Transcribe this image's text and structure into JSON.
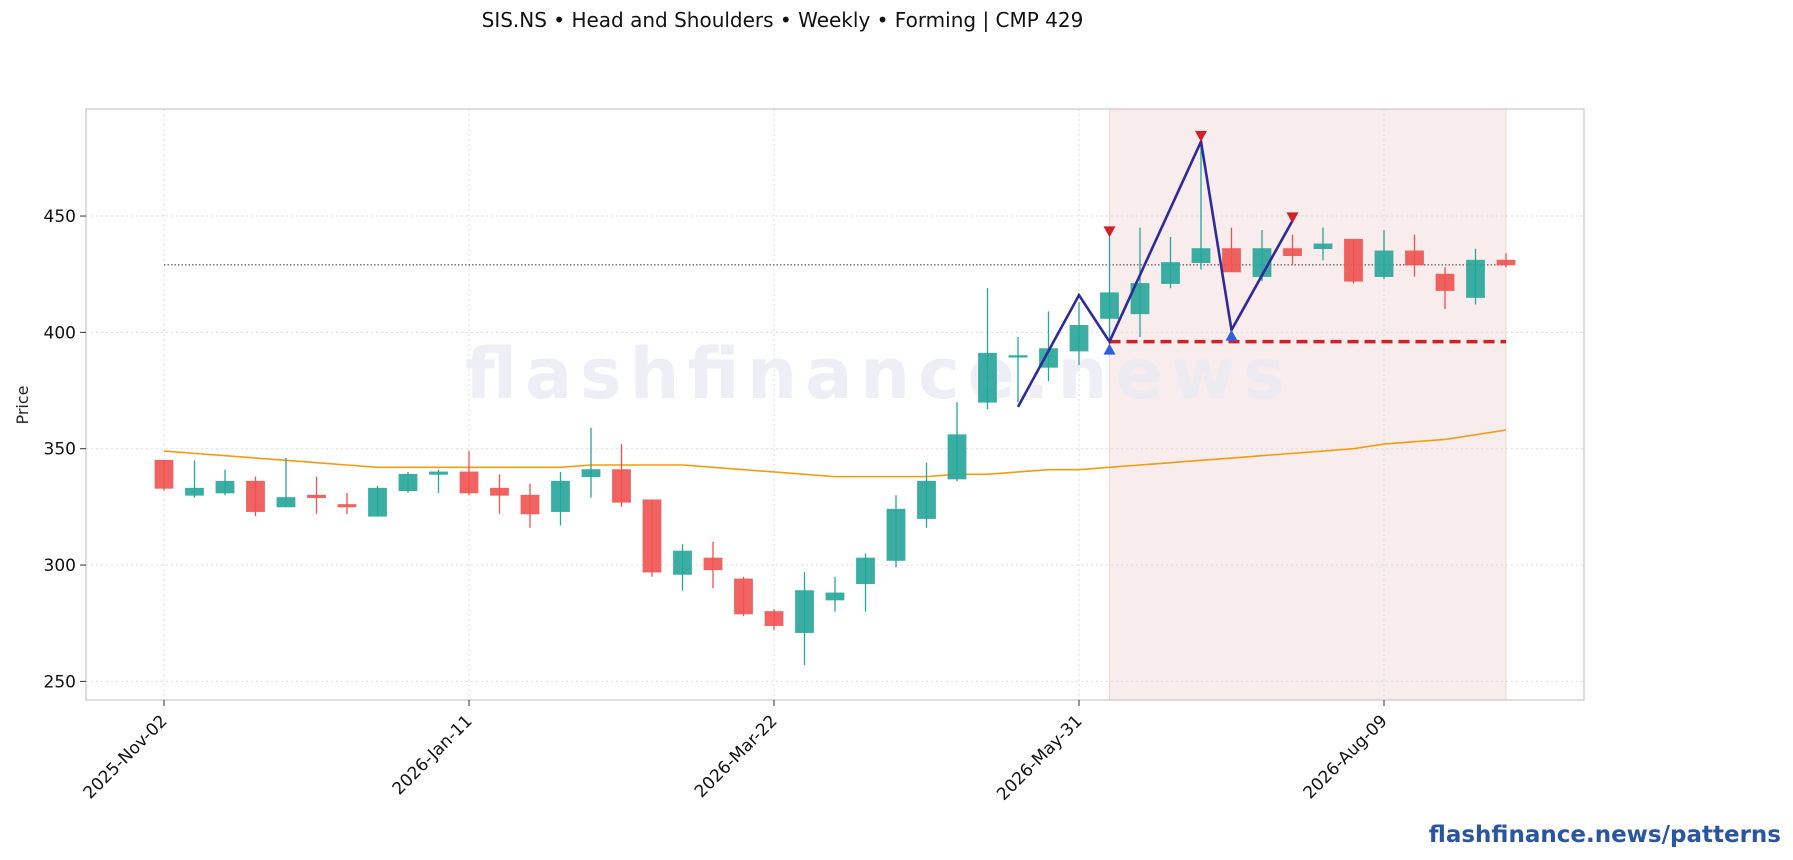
{
  "header": {
    "title": "SIS.NS  •  Head and Shoulders  •  Weekly  •  Forming  |  CMP 429"
  },
  "footer": {
    "link": "flashfinance.news/patterns"
  },
  "watermark": "flashfinance.news",
  "colors": {
    "up": "#26a69a",
    "down": "#ef5350",
    "moving_average": "#f39c12",
    "pattern_line": "#2e2a9c",
    "neckline": "#d0202a",
    "pattern_zone": "#f9ecec",
    "marker_up": "#2f5fe0",
    "marker_down": "#d0202a"
  },
  "chart_data": {
    "type": "candlestick",
    "ylabel": "Price",
    "xlabel": "",
    "ylim": [
      242,
      496
    ],
    "yticks": [
      250,
      300,
      350,
      400,
      450
    ],
    "xtick_labels": [
      {
        "label": "2025-Nov-02",
        "index": 0
      },
      {
        "label": "2026-Jan-11",
        "index": 10
      },
      {
        "label": "2026-Mar-22",
        "index": 20
      },
      {
        "label": "2026-May-31",
        "index": 30
      },
      {
        "label": "2026-Aug-09",
        "index": 40
      }
    ],
    "grid": true,
    "candles": [
      {
        "date": "2025-Nov-02",
        "open": 345,
        "high": 345,
        "low": 332,
        "close": 333
      },
      {
        "date": "2025-Nov-09",
        "open": 330,
        "high": 345,
        "low": 329,
        "close": 333
      },
      {
        "date": "2025-Nov-16",
        "open": 331,
        "high": 341,
        "low": 330,
        "close": 336
      },
      {
        "date": "2025-Nov-23",
        "open": 336,
        "high": 338,
        "low": 321,
        "close": 323
      },
      {
        "date": "2025-Nov-30",
        "open": 325,
        "high": 346,
        "low": 325,
        "close": 329
      },
      {
        "date": "2025-Dec-07",
        "open": 330,
        "high": 338,
        "low": 322,
        "close": 329
      },
      {
        "date": "2025-Dec-14",
        "open": 326,
        "high": 331,
        "low": 322,
        "close": 325
      },
      {
        "date": "2025-Dec-21",
        "open": 321,
        "high": 334,
        "low": 321,
        "close": 333
      },
      {
        "date": "2025-Dec-28",
        "open": 332,
        "high": 340,
        "low": 331,
        "close": 339
      },
      {
        "date": "2026-Jan-04",
        "open": 339,
        "high": 341,
        "low": 331,
        "close": 340
      },
      {
        "date": "2026-Jan-11",
        "open": 340,
        "high": 349,
        "low": 330,
        "close": 331
      },
      {
        "date": "2026-Jan-18",
        "open": 333,
        "high": 339,
        "low": 322,
        "close": 330
      },
      {
        "date": "2026-Jan-25",
        "open": 330,
        "high": 335,
        "low": 316,
        "close": 322
      },
      {
        "date": "2026-Feb-01",
        "open": 323,
        "high": 340,
        "low": 317,
        "close": 336
      },
      {
        "date": "2026-Feb-08",
        "open": 338,
        "high": 359,
        "low": 329,
        "close": 341
      },
      {
        "date": "2026-Feb-15",
        "open": 341,
        "high": 352,
        "low": 325,
        "close": 327
      },
      {
        "date": "2026-Feb-22",
        "open": 328,
        "high": 328,
        "low": 295,
        "close": 297
      },
      {
        "date": "2026-Mar-01",
        "open": 296,
        "high": 309,
        "low": 289,
        "close": 306
      },
      {
        "date": "2026-Mar-08",
        "open": 303,
        "high": 310,
        "low": 290,
        "close": 298
      },
      {
        "date": "2026-Mar-15",
        "open": 294,
        "high": 295,
        "low": 278,
        "close": 279
      },
      {
        "date": "2026-Mar-22",
        "open": 280,
        "high": 281,
        "low": 272,
        "close": 274
      },
      {
        "date": "2026-Mar-29",
        "open": 271,
        "high": 297,
        "low": 257,
        "close": 289
      },
      {
        "date": "2026-Apr-05",
        "open": 285,
        "high": 295,
        "low": 280,
        "close": 288
      },
      {
        "date": "2026-Apr-12",
        "open": 292,
        "high": 305,
        "low": 280,
        "close": 303
      },
      {
        "date": "2026-Apr-19",
        "open": 302,
        "high": 330,
        "low": 299,
        "close": 324
      },
      {
        "date": "2026-Apr-26",
        "open": 320,
        "high": 344,
        "low": 316,
        "close": 336
      },
      {
        "date": "2026-May-03",
        "open": 337,
        "high": 370,
        "low": 336,
        "close": 356
      },
      {
        "date": "2026-May-10",
        "open": 370,
        "high": 419,
        "low": 367,
        "close": 391
      },
      {
        "date": "2026-May-17",
        "open": 390,
        "high": 398,
        "low": 370,
        "close": 390
      },
      {
        "date": "2026-May-24",
        "open": 385,
        "high": 409,
        "low": 379,
        "close": 393
      },
      {
        "date": "2026-May-31",
        "open": 392,
        "high": 413,
        "low": 386,
        "close": 403
      },
      {
        "date": "2026-Jun-07",
        "open": 406,
        "high": 441,
        "low": 395,
        "close": 417
      },
      {
        "date": "2026-Jun-14",
        "open": 408,
        "high": 445,
        "low": 398,
        "close": 421
      },
      {
        "date": "2026-Jun-21",
        "open": 421,
        "high": 441,
        "low": 419,
        "close": 430
      },
      {
        "date": "2026-Jun-28",
        "open": 430,
        "high": 480,
        "low": 427,
        "close": 436
      },
      {
        "date": "2026-Jul-05",
        "open": 436,
        "high": 445,
        "low": 426,
        "close": 426
      },
      {
        "date": "2026-Jul-12",
        "open": 424,
        "high": 444,
        "low": 422,
        "close": 436
      },
      {
        "date": "2026-Jul-19",
        "open": 436,
        "high": 442,
        "low": 429,
        "close": 433
      },
      {
        "date": "2026-Jul-26",
        "open": 436,
        "high": 445,
        "low": 431,
        "close": 438
      },
      {
        "date": "2026-Aug-02",
        "open": 440,
        "high": 440,
        "low": 421,
        "close": 422
      },
      {
        "date": "2026-Aug-09",
        "open": 424,
        "high": 444,
        "low": 423,
        "close": 435
      },
      {
        "date": "2026-Aug-16",
        "open": 435,
        "high": 442,
        "low": 424,
        "close": 429
      },
      {
        "date": "2026-Aug-23",
        "open": 425,
        "high": 428,
        "low": 410,
        "close": 418
      },
      {
        "date": "2026-Aug-30",
        "open": 415,
        "high": 436,
        "low": 412,
        "close": 431
      },
      {
        "date": "2026-Sep-06",
        "open": 431,
        "high": 434,
        "low": 428,
        "close": 429
      }
    ],
    "moving_average": [
      349,
      348,
      347,
      346,
      345,
      344,
      343,
      342,
      342,
      342,
      342,
      342,
      342,
      342,
      343,
      343,
      343,
      343,
      342,
      341,
      340,
      339,
      338,
      338,
      338,
      338,
      339,
      339,
      340,
      341,
      341,
      342,
      343,
      344,
      345,
      346,
      347,
      348,
      349,
      350,
      352,
      353,
      354,
      356,
      358
    ],
    "cmp_line": {
      "value": 429,
      "start_index": 0,
      "end_index": 44
    },
    "neckline": {
      "value": 396,
      "start_index": 31,
      "end_index": 44
    },
    "pattern_zone": {
      "start_index": 31,
      "end_index": 44
    },
    "pattern_path": [
      {
        "index": 28,
        "value": 368
      },
      {
        "index": 30,
        "value": 416
      },
      {
        "index": 31,
        "value": 396
      },
      {
        "index": 34,
        "value": 482
      },
      {
        "index": 35,
        "value": 401
      },
      {
        "index": 37,
        "value": 448
      }
    ],
    "markers_down": [
      {
        "index": 31,
        "value": 443
      },
      {
        "index": 34,
        "value": 484
      },
      {
        "index": 37,
        "value": 449
      }
    ],
    "markers_up": [
      {
        "index": 31,
        "value": 393
      },
      {
        "index": 35,
        "value": 399
      }
    ]
  }
}
